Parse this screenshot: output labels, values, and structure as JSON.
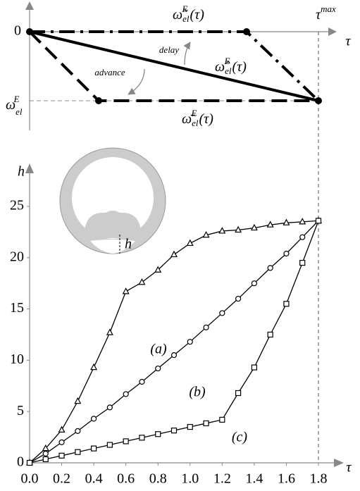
{
  "diagram": {
    "origin_label": "0",
    "axis_label": "τ",
    "tau_max": {
      "base": "τ",
      "sup": "max"
    },
    "omega_label": {
      "base": "ω",
      "sub": "el",
      "sup": "E"
    },
    "curves": [
      {
        "base": "ω̃",
        "sub": "el",
        "sup": "E",
        "arg": "(τ)"
      },
      {
        "base": "ω̂",
        "sub": "el",
        "sup": "E",
        "arg": "(τ)"
      },
      {
        "base": "ω̄",
        "sub": "el",
        "sup": "E",
        "arg": "(τ)"
      }
    ],
    "delay": "delay",
    "advance": "advance",
    "inset_label": "h"
  },
  "chart_data": {
    "type": "line",
    "xlabel": "τ",
    "ylabel": "h",
    "x": [
      0,
      0.1,
      0.2,
      0.3,
      0.4,
      0.5,
      0.6,
      0.7,
      0.8,
      0.9,
      1.0,
      1.1,
      1.2,
      1.3,
      1.4,
      1.5,
      1.6,
      1.7,
      1.8
    ],
    "series": [
      {
        "name": "(a)",
        "color": "#000000",
        "marker": "triangle",
        "values": [
          0,
          1.4,
          3.2,
          6.0,
          9.3,
          12.7,
          16.7,
          17.6,
          18.8,
          20.3,
          21.4,
          22.2,
          22.6,
          22.7,
          22.9,
          23.2,
          23.4,
          23.5,
          23.6
        ]
      },
      {
        "name": "(b)",
        "color": "#000000",
        "marker": "circle",
        "values": [
          0,
          0.9,
          2.0,
          3.1,
          4.3,
          5.4,
          6.7,
          7.9,
          9.2,
          10.5,
          11.8,
          13.2,
          14.6,
          16.0,
          17.5,
          19.0,
          20.4,
          22.0,
          23.6
        ]
      },
      {
        "name": "(c)",
        "color": "#000000",
        "marker": "square",
        "values": [
          0,
          0.35,
          0.7,
          1.05,
          1.4,
          1.75,
          2.1,
          2.45,
          2.8,
          3.15,
          3.5,
          3.85,
          4.2,
          6.8,
          9.3,
          12.5,
          15.5,
          19.5,
          23.6
        ]
      }
    ],
    "xlim": [
      0,
      1.8
    ],
    "ylim": [
      0,
      25
    ],
    "xticks": [
      {
        "value": 0,
        "label": "0.0"
      },
      0.2,
      0.4,
      0.6,
      0.8,
      {
        "value": 1,
        "label": "1.0"
      },
      1.2,
      1.4,
      1.6,
      1.8
    ],
    "yticks": [
      0,
      5,
      10,
      15,
      20,
      25
    ]
  }
}
